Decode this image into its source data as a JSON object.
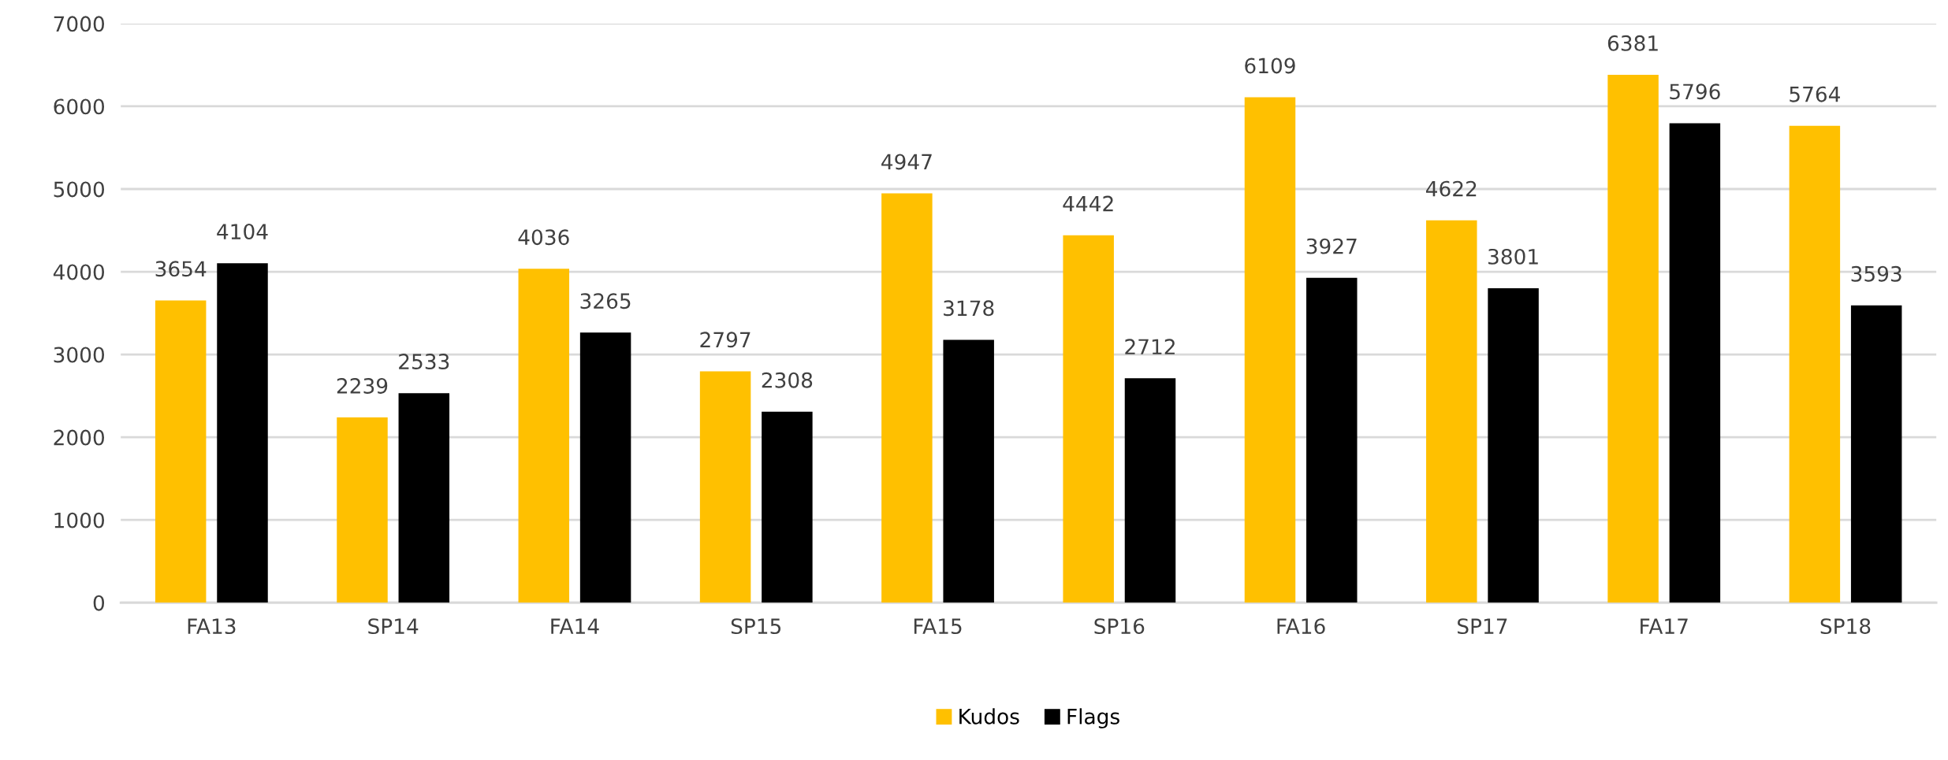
{
  "chart_data": {
    "type": "bar",
    "categories": [
      "FA13",
      "SP14",
      "FA14",
      "SP15",
      "FA15",
      "SP16",
      "FA16",
      "SP17",
      "FA17",
      "SP18"
    ],
    "series": [
      {
        "name": "Kudos",
        "color": "#ffc000",
        "values": [
          3654,
          2239,
          4036,
          2797,
          4947,
          4442,
          6109,
          4622,
          6381,
          5764
        ]
      },
      {
        "name": "Flags",
        "color": "#000000",
        "values": [
          4104,
          2533,
          3265,
          2308,
          3178,
          2712,
          3927,
          3801,
          5796,
          3593
        ]
      }
    ],
    "ylim": [
      0,
      7000
    ],
    "yticks": [
      0,
      1000,
      2000,
      3000,
      4000,
      5000,
      6000,
      7000
    ],
    "grid": "y",
    "legend": "bottom",
    "data_labels": true
  }
}
